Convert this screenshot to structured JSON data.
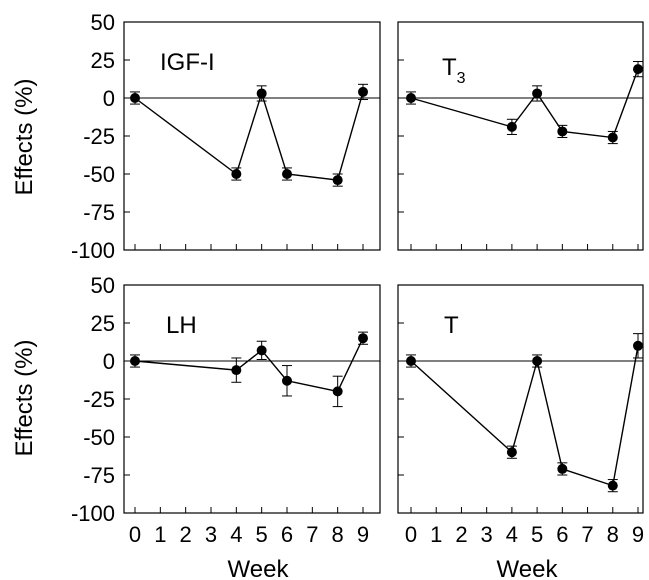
{
  "chart_data": {
    "type": "line",
    "ylabel": "Effects (%)",
    "xlabel": "Week",
    "ylim": [
      -100,
      50
    ],
    "yticks": [
      50,
      25,
      0,
      -25,
      -50,
      -75,
      -100
    ],
    "xlim": [
      0,
      9
    ],
    "xticks": [
      0,
      1,
      2,
      3,
      4,
      5,
      6,
      7,
      8,
      9
    ],
    "panels": [
      {
        "label": "IGF-I",
        "subscript": "",
        "x": [
          0,
          4,
          5,
          6,
          8,
          9
        ],
        "y": [
          0,
          -50,
          3,
          -50,
          -54,
          4
        ],
        "err": [
          4,
          4,
          5,
          4,
          4,
          5
        ]
      },
      {
        "label": "T",
        "subscript": "3",
        "x": [
          0,
          4,
          5,
          6,
          8,
          9
        ],
        "y": [
          0,
          -19,
          3,
          -22,
          -26,
          19
        ],
        "err": [
          4,
          5,
          5,
          4,
          4,
          5
        ]
      },
      {
        "label": "LH",
        "subscript": "",
        "x": [
          0,
          4,
          5,
          6,
          8,
          9
        ],
        "y": [
          0,
          -6,
          7,
          -13,
          -20,
          15
        ],
        "err": [
          4,
          8,
          6,
          10,
          10,
          4
        ]
      },
      {
        "label": "T",
        "subscript": "",
        "x": [
          0,
          4,
          5,
          6,
          8,
          9
        ],
        "y": [
          0,
          -60,
          0,
          -71,
          -82,
          10
        ],
        "err": [
          4,
          4,
          4,
          4,
          4,
          8
        ]
      }
    ]
  }
}
